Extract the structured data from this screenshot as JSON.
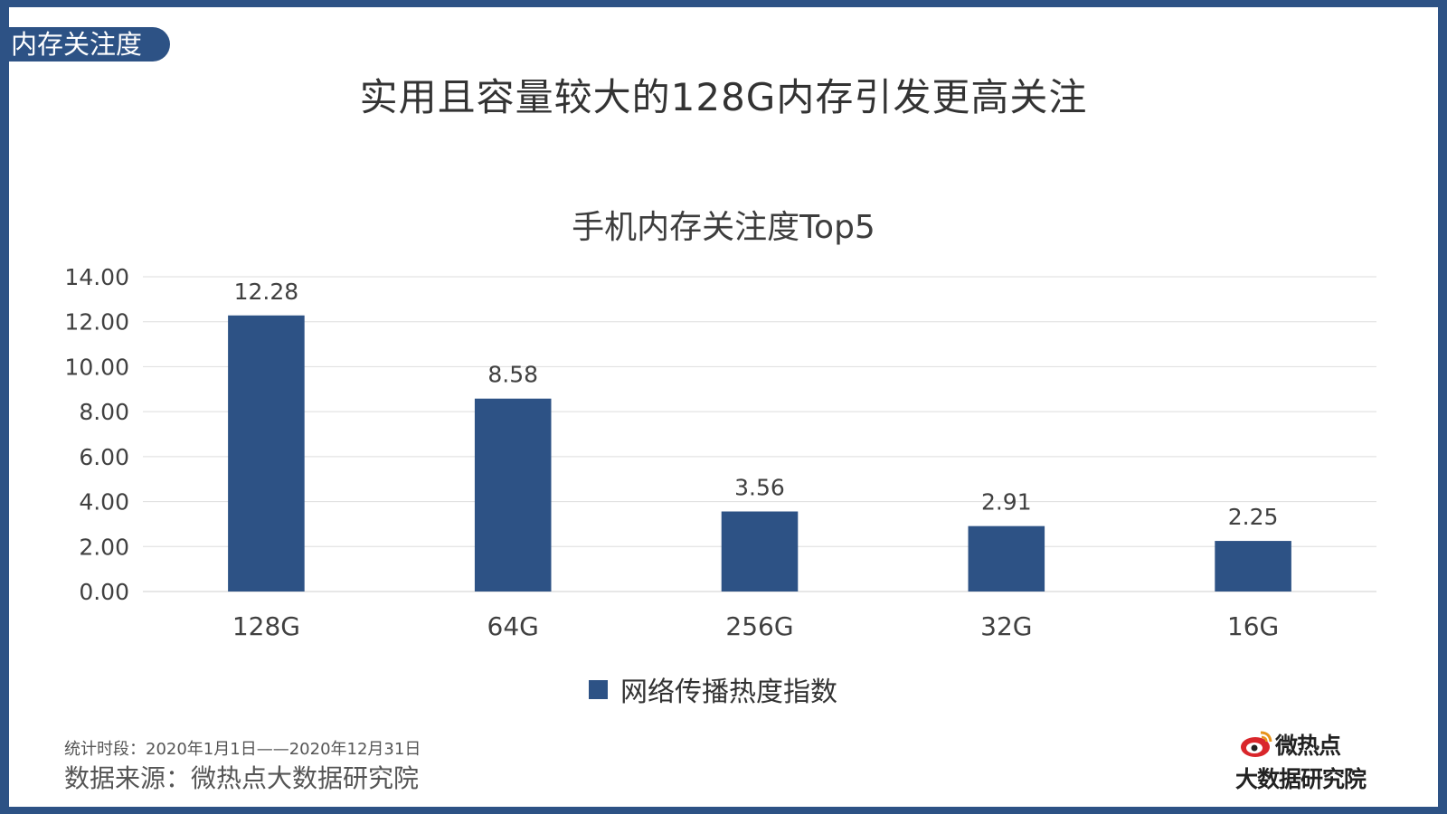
{
  "section_tag": "内存关注度",
  "main_title": "实用且容量较大的128G内存引发更高关注",
  "chart_data": {
    "type": "bar",
    "title": "手机内存关注度Top5",
    "categories": [
      "128G",
      "64G",
      "256G",
      "32G",
      "16G"
    ],
    "series": [
      {
        "name": "网络传播热度指数",
        "values": [
          12.28,
          8.58,
          3.56,
          2.91,
          2.25
        ],
        "color": "#2d5285"
      }
    ],
    "data_labels": [
      "12.28",
      "8.58",
      "3.56",
      "2.91",
      "2.25"
    ],
    "ylim": [
      0,
      14
    ],
    "yticks": [
      "0.00",
      "2.00",
      "4.00",
      "6.00",
      "8.00",
      "10.00",
      "12.00",
      "14.00"
    ],
    "grid": true,
    "legend_position": "bottom"
  },
  "footer": {
    "period": "统计时段：2020年1月1日——2020年12月31日",
    "source": "数据来源：微热点大数据研究院"
  },
  "logo": {
    "brand": "微热点",
    "subtitle": "大数据研究院"
  },
  "colors": {
    "accent": "#2d5285",
    "logo_red": "#d9262b"
  }
}
